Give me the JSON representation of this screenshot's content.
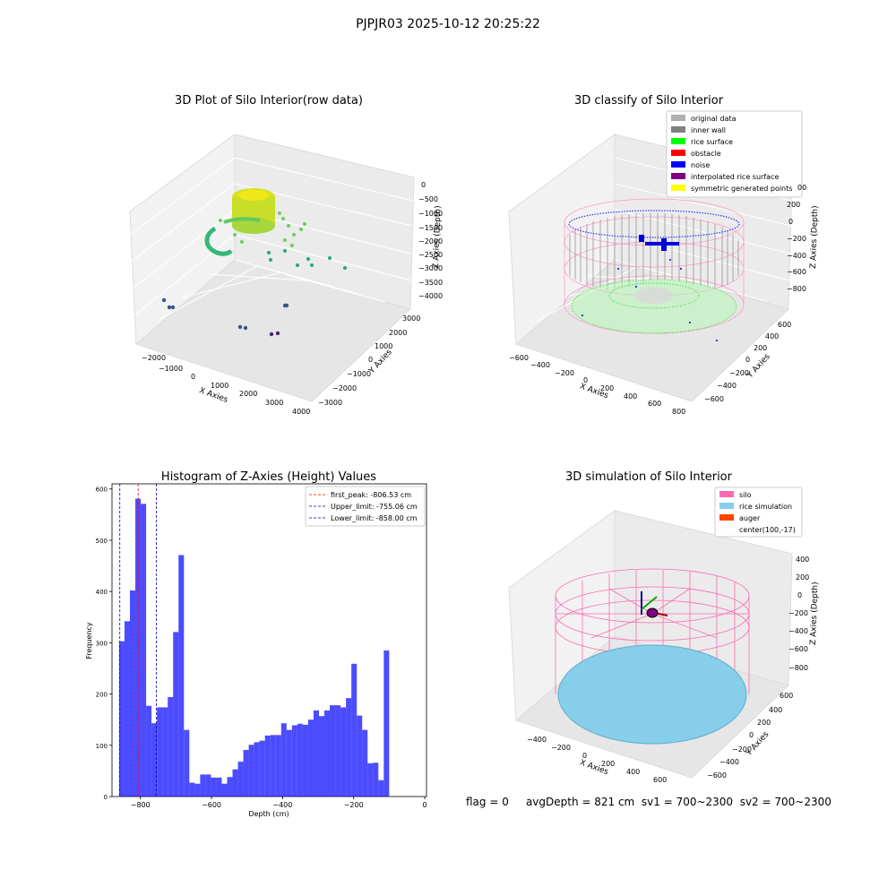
{
  "suptitle": "PJPJR03 2025-10-12 20:25:22",
  "panels": {
    "raw": {
      "title": "3D Plot of Silo Interior(row data)",
      "xlabel": "X Axies",
      "ylabel": "Y Axies",
      "zlabel": "Z Axies (Depth)",
      "xticks": [
        "−2000",
        "−1000",
        "0",
        "1000",
        "2000",
        "3000",
        "4000"
      ],
      "yticks": [
        "3000",
        "2000",
        "1000",
        "0",
        "−1000",
        "−2000",
        "−3000"
      ],
      "zticks": [
        "0",
        "−500",
        "−1000",
        "−1500",
        "−2000",
        "−2500",
        "−3000",
        "−3500",
        "−4000"
      ]
    },
    "classify": {
      "title": "3D classify of Silo Interior",
      "xlabel": "X Axies",
      "ylabel": "Y Axies",
      "zlabel": "Z Axies (Depth)",
      "xticks": [
        "−600",
        "−400",
        "−200",
        "0",
        "200",
        "400",
        "600",
        "800"
      ],
      "yticks": [
        "600",
        "400",
        "200",
        "0",
        "−200",
        "−400",
        "−600"
      ],
      "zticks": [
        "200",
        "0",
        "−200",
        "−400",
        "−600",
        "−800"
      ],
      "ztop_partial": "00",
      "legend": [
        {
          "label": "original data",
          "color": "#b0b0b0"
        },
        {
          "label": "inner wall",
          "color": "#808080"
        },
        {
          "label": "rice surface",
          "color": "#00ff00"
        },
        {
          "label": "obstacle",
          "color": "#ff0000"
        },
        {
          "label": "noise",
          "color": "#0000ff"
        },
        {
          "label": "interpolated rice surface",
          "color": "#800080"
        },
        {
          "label": "symmetric generated points",
          "color": "#ffff00"
        }
      ]
    },
    "simulation": {
      "title": "3D simulation of Silo Interior",
      "xlabel": "X Axies",
      "ylabel": "Y Axies",
      "zlabel": "Z Axies (Depth)",
      "xticks": [
        "−400",
        "−200",
        "0",
        "200",
        "400",
        "600"
      ],
      "yticks": [
        "600",
        "400",
        "200",
        "0",
        "−200",
        "−400",
        "−600"
      ],
      "zticks": [
        "400",
        "200",
        "0",
        "−200",
        "−400",
        "−600",
        "−800"
      ],
      "legend": [
        {
          "label": "silo",
          "color": "#ff69b4"
        },
        {
          "label": "rice simulation",
          "color": "#87ceeb"
        },
        {
          "label": "auger",
          "color": "#ff4500"
        },
        {
          "label": "center(100,-17)",
          "color": ""
        }
      ]
    }
  },
  "footer": {
    "flag": "flag = 0",
    "avg": "avgDepth = 821 cm",
    "sv1": "sv1 = 700~2300",
    "sv2": "sv2 = 700~2300"
  },
  "chart_data": {
    "type": "bar",
    "title": "Histogram of Z-Axies (Height) Values",
    "xlabel": "Depth (cm)",
    "ylabel": "Frequency",
    "xlim": [
      -880,
      5
    ],
    "ylim": [
      0,
      610
    ],
    "xticks": [
      -800,
      -600,
      -400,
      -200,
      0
    ],
    "xtick_labels": [
      "−800",
      "−600",
      "−400",
      "−200",
      "0"
    ],
    "yticks": [
      0,
      100,
      200,
      300,
      400,
      500,
      600
    ],
    "bar_color": "#0000ff",
    "bin_start": -860,
    "bin_width": 15.2,
    "values": [
      303,
      342,
      402,
      581,
      571,
      177,
      143,
      174,
      174,
      194,
      321,
      471,
      130,
      27,
      25,
      43,
      43,
      37,
      37,
      25,
      38,
      53,
      68,
      91,
      101,
      106,
      109,
      119,
      120,
      120,
      143,
      130,
      139,
      142,
      140,
      150,
      168,
      157,
      168,
      178,
      178,
      174,
      192,
      259,
      158,
      130,
      65,
      66,
      32,
      285
    ],
    "vlines": [
      {
        "x": -806.53,
        "color": "#ff0000",
        "label": "first_peak: -806.53 cm"
      },
      {
        "x": -755.06,
        "color": "#0000aa",
        "label": "Upper_limit: -755.06 cm"
      },
      {
        "x": -858.0,
        "color": "#0000aa",
        "label": "Lower_limit: -858.00 cm"
      }
    ],
    "legend_position": "upper right"
  }
}
